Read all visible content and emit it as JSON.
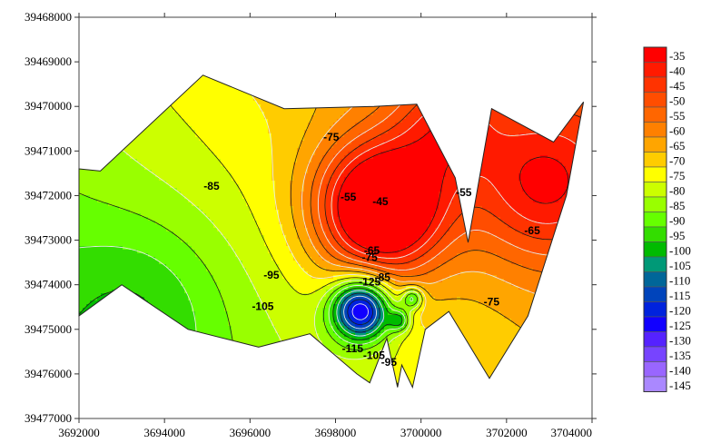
{
  "chart_data": {
    "type": "heatmap",
    "subtype": "filled-contour-map",
    "title": "",
    "xlabel": "",
    "ylabel": "",
    "xlim": [
      3692000,
      3704000
    ],
    "ylim": [
      39477000,
      39468000
    ],
    "y_axis_inverted": true,
    "grid": false,
    "legend_position": "right",
    "x_ticks": [
      "3692000",
      "3694000",
      "3696000",
      "3698000",
      "3700000",
      "3702000",
      "3704000"
    ],
    "x_tick_values": [
      3692000,
      3694000,
      3696000,
      3698000,
      3700000,
      3702000,
      3704000
    ],
    "y_ticks": [
      "39468000",
      "39469000",
      "39470000",
      "39471000",
      "39472000",
      "39473000",
      "39474000",
      "39475000",
      "39476000",
      "39477000"
    ],
    "y_tick_values": [
      39468000,
      39469000,
      39470000,
      39471000,
      39472000,
      39473000,
      39474000,
      39475000,
      39476000,
      39477000
    ],
    "legend": {
      "levels": [
        "-35",
        "-40",
        "-45",
        "-50",
        "-55",
        "-60",
        "-65",
        "-70",
        "-75",
        "-80",
        "-85",
        "-90",
        "-95",
        "-100",
        "-105",
        "-110",
        "-115",
        "-120",
        "-125",
        "-130",
        "-135",
        "-140",
        "-145"
      ],
      "colors": [
        "#ff0000",
        "#ff1a00",
        "#ff3300",
        "#ff4d00",
        "#ff6600",
        "#ff8000",
        "#ffa500",
        "#ffcc00",
        "#ffff00",
        "#ccff00",
        "#99ff00",
        "#66ff00",
        "#33dd00",
        "#00bb00",
        "#009977",
        "#006699",
        "#0044bb",
        "#0022dd",
        "#1100ff",
        "#5522ff",
        "#7744ff",
        "#9966ff",
        "#aa88ff"
      ]
    },
    "boundary": [
      [
        3692000,
        39471400
      ],
      [
        3692500,
        39471450
      ],
      [
        3694900,
        39469300
      ],
      [
        3696800,
        39470050
      ],
      [
        3698900,
        39470000
      ],
      [
        3699900,
        39469950
      ],
      [
        3700800,
        39471600
      ],
      [
        3701100,
        39473050
      ],
      [
        3701650,
        39470050
      ],
      [
        3703100,
        39470800
      ],
      [
        3703800,
        39469900
      ],
      [
        3703400,
        39472000
      ],
      [
        3702500,
        39474700
      ],
      [
        3701600,
        39476100
      ],
      [
        3700650,
        39474600
      ],
      [
        3700100,
        39475000
      ],
      [
        3699800,
        39476300
      ],
      [
        3699550,
        39475800
      ],
      [
        3699450,
        39476300
      ],
      [
        3699200,
        39475200
      ],
      [
        3698800,
        39476200
      ],
      [
        3698500,
        39476000
      ],
      [
        3697400,
        39475100
      ],
      [
        3696200,
        39475400
      ],
      [
        3694550,
        39475000
      ],
      [
        3693000,
        39474000
      ],
      [
        3692000,
        39474700
      ]
    ],
    "contour_labels": [
      {
        "text": "-85",
        "x": 3695100,
        "y": 39471800
      },
      {
        "text": "-75",
        "x": 3697900,
        "y": 39470700
      },
      {
        "text": "-55",
        "x": 3698300,
        "y": 39472050
      },
      {
        "text": "-45",
        "x": 3699050,
        "y": 39472150
      },
      {
        "text": "-55",
        "x": 3701000,
        "y": 39471950
      },
      {
        "text": "-65",
        "x": 3702600,
        "y": 39472800
      },
      {
        "text": "-65",
        "x": 3698850,
        "y": 39473250
      },
      {
        "text": "-75",
        "x": 3698800,
        "y": 39473400
      },
      {
        "text": "-95",
        "x": 3696500,
        "y": 39473800
      },
      {
        "text": "-105",
        "x": 3696300,
        "y": 39474500
      },
      {
        "text": "-85",
        "x": 3699100,
        "y": 39473850
      },
      {
        "text": "-125",
        "x": 3698800,
        "y": 39473950
      },
      {
        "text": "-75",
        "x": 3701650,
        "y": 39474400
      },
      {
        "text": "-115",
        "x": 3698400,
        "y": 39475450
      },
      {
        "text": "-105",
        "x": 3698900,
        "y": 39475600
      },
      {
        "text": "-95",
        "x": 3699250,
        "y": 39475750
      }
    ]
  }
}
